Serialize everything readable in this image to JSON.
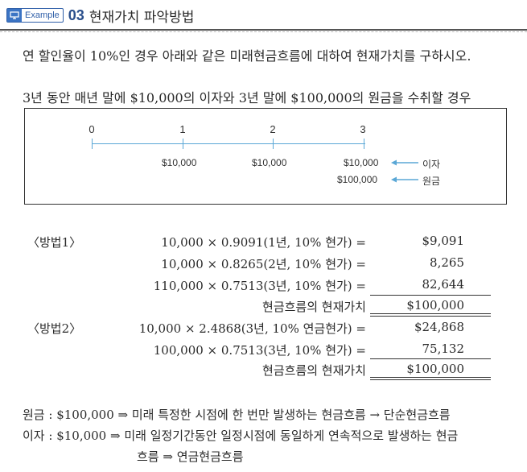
{
  "header": {
    "badge_label": "Example",
    "number": "03",
    "title": "현재가치 파악방법"
  },
  "problem": {
    "line1": "연 할인율이 10%인 경우 아래와 같은  미래현금흐름에 대하여 현재가치를 구하시오.",
    "line2": "3년 동안 매년 말에 $10,000의 이자와 3년 말에 $100,000의 원금을 수취할 경우"
  },
  "timeline": {
    "periods": [
      "0",
      "1",
      "2",
      "3"
    ],
    "interest_amounts": [
      "$10,000",
      "$10,000",
      "$10,000"
    ],
    "principal_amount": "$100,000",
    "interest_label": "이자",
    "principal_label": "원금"
  },
  "method1": {
    "label": "〈방법1〉",
    "rows": [
      {
        "expr": "10,000 × 0.9091(1년, 10% 현가) =",
        "value": "$9,091"
      },
      {
        "expr": "10,000 × 0.8265(2년, 10% 현가) =",
        "value": "8,265"
      },
      {
        "expr": "110,000 × 0.7513(3년, 10% 현가) =",
        "value": "82,644"
      }
    ],
    "total_label": "현금흐름의 현재가치",
    "total_value": "$100,000"
  },
  "method2": {
    "label": "〈방법2〉",
    "rows": [
      {
        "expr": "10,000 × 2.4868(3년, 10% 연금현가) =",
        "value": "$24,868"
      },
      {
        "expr": "100,000 × 0.7513(3년, 10% 현가) =",
        "value": "75,132"
      }
    ],
    "total_label": "현금흐름의 현재가치",
    "total_value": "$100,000"
  },
  "notes": {
    "principal": "원금 : $100,000 ⇒ 미래 특정한 시점에 한 번만 발생하는 현금흐름 → 단순현금흐름",
    "interest": "이자 : $10,000 ⇒ 미래 일정기간동안 일정시점에 동일하게 연속적으로 발생하는 현금",
    "interest_cont": "흐름 ⇒ 연금현금흐름"
  }
}
